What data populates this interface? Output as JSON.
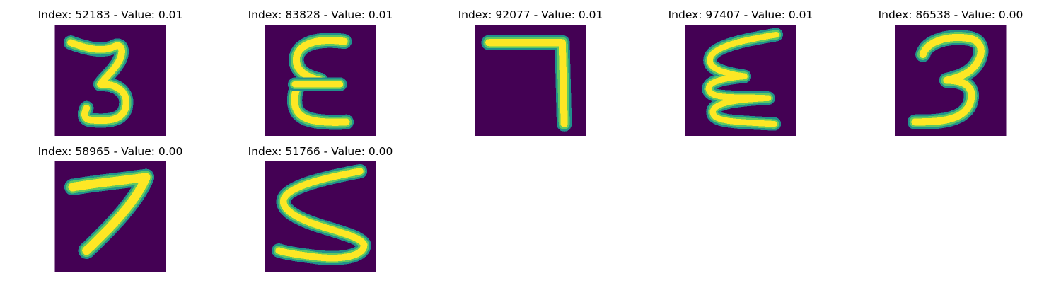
{
  "colors": {
    "background": "#440154",
    "stroke_edge": "#21918c",
    "stroke_mid": "#5ec962",
    "stroke_core": "#fde725"
  },
  "panels": [
    {
      "title": "Index: 52183 - Value: 0.01",
      "digit_icon": "digit-3-icon"
    },
    {
      "title": "Index: 83828 - Value: 0.01",
      "digit_icon": "digit-epsilon-icon"
    },
    {
      "title": "Index: 92077 - Value: 0.01",
      "digit_icon": "digit-7-icon"
    },
    {
      "title": "Index: 97407 - Value: 0.01",
      "digit_icon": "digit-epsilon-icon"
    },
    {
      "title": "Index: 86538 - Value: 0.00",
      "digit_icon": "digit-3-icon"
    },
    {
      "title": "Index: 58965 - Value: 0.00",
      "digit_icon": "digit-7-icon"
    },
    {
      "title": "Index: 51766 - Value: 0.00",
      "digit_icon": "digit-5-icon"
    }
  ]
}
